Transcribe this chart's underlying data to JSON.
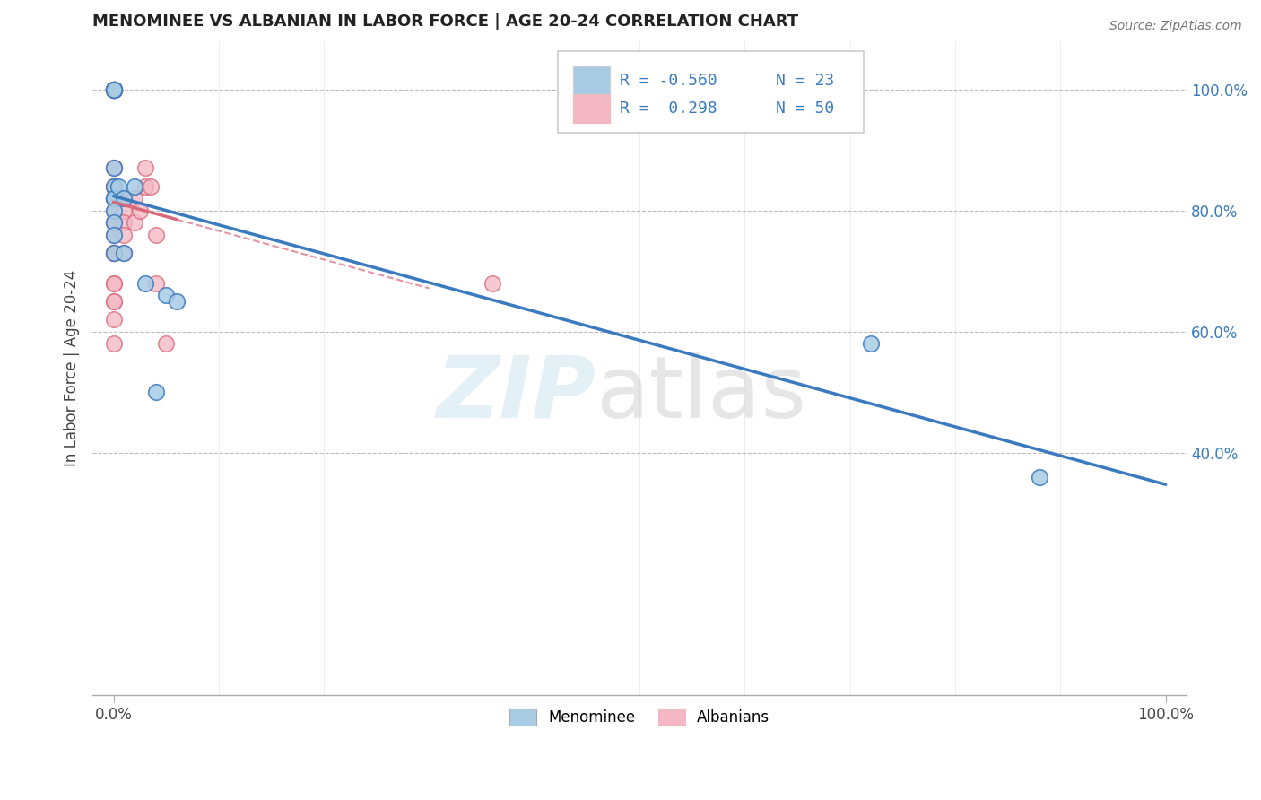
{
  "title": "MENOMINEE VS ALBANIAN IN LABOR FORCE | AGE 20-24 CORRELATION CHART",
  "source": "Source: ZipAtlas.com",
  "ylabel": "In Labor Force | Age 20-24",
  "xlim": [
    -0.02,
    1.02
  ],
  "ylim": [
    0.0,
    1.08
  ],
  "xticks": [
    0.0,
    1.0
  ],
  "xtick_labels": [
    "0.0%",
    "100.0%"
  ],
  "yticks": [
    0.4,
    0.6,
    0.8,
    1.0
  ],
  "ytick_labels": [
    "40.0%",
    "60.0%",
    "80.0%",
    "100.0%"
  ],
  "menominee_R": -0.56,
  "menominee_N": 23,
  "albanian_R": 0.298,
  "albanian_N": 50,
  "blue_color": "#a8cce4",
  "pink_color": "#f4b8c4",
  "trend_blue": "#3a7abf",
  "trend_pink": "#d9697a",
  "menominee_x": [
    0.0,
    0.0,
    0.0,
    0.0,
    0.0,
    0.0,
    0.0,
    0.0,
    0.0,
    0.0,
    0.0,
    0.0,
    0.0,
    0.005,
    0.01,
    0.01,
    0.02,
    0.03,
    0.04,
    0.05,
    0.06,
    0.72,
    0.88
  ],
  "menominee_y": [
    1.0,
    1.0,
    1.0,
    1.0,
    1.0,
    0.87,
    0.84,
    0.82,
    0.82,
    0.8,
    0.78,
    0.76,
    0.73,
    0.84,
    0.82,
    0.73,
    0.84,
    0.68,
    0.5,
    0.66,
    0.65,
    0.58,
    0.36
  ],
  "albanian_x": [
    0.0,
    0.0,
    0.0,
    0.0,
    0.0,
    0.0,
    0.0,
    0.0,
    0.0,
    0.0,
    0.0,
    0.0,
    0.0,
    0.0,
    0.0,
    0.0,
    0.0,
    0.0,
    0.0,
    0.0,
    0.0,
    0.0,
    0.0,
    0.0,
    0.0,
    0.0,
    0.0,
    0.0,
    0.0,
    0.0,
    0.0,
    0.0,
    0.005,
    0.005,
    0.005,
    0.01,
    0.01,
    0.01,
    0.01,
    0.01,
    0.02,
    0.02,
    0.025,
    0.03,
    0.03,
    0.04,
    0.035,
    0.04,
    0.05,
    0.36
  ],
  "albanian_y": [
    1.0,
    1.0,
    1.0,
    1.0,
    1.0,
    1.0,
    1.0,
    1.0,
    1.0,
    0.87,
    0.87,
    0.84,
    0.84,
    0.84,
    0.82,
    0.82,
    0.82,
    0.8,
    0.78,
    0.78,
    0.76,
    0.73,
    0.73,
    0.73,
    0.73,
    0.73,
    0.68,
    0.68,
    0.65,
    0.65,
    0.62,
    0.58,
    0.82,
    0.82,
    0.82,
    0.82,
    0.8,
    0.78,
    0.76,
    0.73,
    0.82,
    0.78,
    0.8,
    0.87,
    0.84,
    0.76,
    0.84,
    0.68,
    0.58,
    0.68
  ]
}
